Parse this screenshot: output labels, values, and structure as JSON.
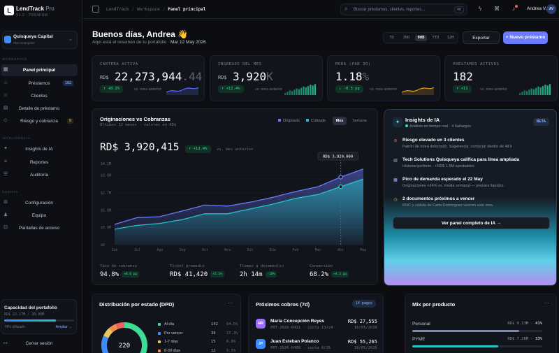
{
  "brand": {
    "name": "LendTrack",
    "pro": "Pro",
    "version": "V1.2 · PREMIUM",
    "logo": "L"
  },
  "org": {
    "name": "Quisqueya Capital",
    "plan": "Plan Enterprise"
  },
  "sidebar": {
    "section1": "WORKSPACE",
    "section2": "INTELIGENCIA",
    "section3": "CUENTA",
    "items": [
      {
        "label": "Panel principal",
        "icon": "grid-icon"
      },
      {
        "label": "Préstamos",
        "icon": "tag-icon",
        "badge": "182"
      },
      {
        "label": "Clientes",
        "icon": "users-icon"
      },
      {
        "label": "Detalle de préstamo",
        "icon": "doc-icon"
      },
      {
        "label": "Riesgo y cobranza",
        "icon": "shield-icon",
        "badge": "9"
      },
      {
        "label": "Insights de IA",
        "icon": "sparkle-icon"
      },
      {
        "label": "Reportes",
        "icon": "chart-icon"
      },
      {
        "label": "Auditoría",
        "icon": "list-icon"
      },
      {
        "label": "Configuración",
        "icon": "gear-icon"
      },
      {
        "label": "Equipo",
        "icon": "team-icon"
      },
      {
        "label": "Pantallas de acceso",
        "icon": "lock-icon"
      }
    ],
    "capacity": {
      "title": "Capacidad del portafolio",
      "value": "RD$ 22.27M / 30.00M",
      "used": "74% utilizado",
      "used_fraction": 0.74,
      "action": "Ampliar →"
    },
    "logout": "Cerrar sesión"
  },
  "topbar": {
    "crumbs": [
      "LendTrack",
      "Workspace",
      "Panel principal"
    ],
    "search_placeholder": "Buscar préstamos, clientes, reportes...",
    "search_key": "⌘K",
    "user": "Andrea V.",
    "user_initials": "AV"
  },
  "header": {
    "greeting": "Buenos días, Andrea 👋",
    "subtitle": "Aquí está el resumen de tu portafolio ·",
    "date": "Mar 12 May 2026",
    "ranges": [
      "7D",
      "30D",
      "90D",
      "YTD",
      "12M"
    ],
    "range_selected": "90D",
    "export": "Exportar",
    "new_loan": "+ Nuevo préstamo"
  },
  "kpis": [
    {
      "label": "CARTERA ACTIVA",
      "cur": "RD$",
      "value": "22,273,944",
      "dec": ".44",
      "delta": "↑ +8.2%",
      "vs": "vs. mes anterior",
      "tone": "g",
      "spark": "line",
      "color": "#5b6cff"
    },
    {
      "label": "INGRESOS DEL MES",
      "cur": "RD$",
      "value": "3,920",
      "dec": "K",
      "delta": "↑ +12.4%",
      "vs": "vs. mes anterior",
      "tone": "g",
      "spark": "bars",
      "color": "#1fbf8f"
    },
    {
      "label": "MORA (PAR 30)",
      "cur": "",
      "value": "1.18",
      "dec": "%",
      "delta": "↓ -0.3 pp",
      "vs": "vs. mes anterior",
      "tone": "g",
      "spark": "line",
      "color": "#e0a020"
    },
    {
      "label": "PRÉSTAMOS ACTIVOS",
      "cur": "",
      "value": "182",
      "dec": "",
      "delta": "↑ +11",
      "vs": "vs. mes anterior",
      "tone": "g",
      "spark": "bars",
      "color": "#1fbf8f"
    }
  ],
  "chart_card": {
    "title": "Originaciones vs Cobranzas",
    "subtitle": "Últimos 12 meses · valores en RD$",
    "legend": [
      "Originado",
      "Cobrado"
    ],
    "toggle": [
      "Mes",
      "Semana"
    ],
    "toggle_selected": "Mes",
    "total": "RD$ 3,920,415",
    "delta": "↑ +12.4%",
    "vs": "vs. mes anterior",
    "tooltip": "RD$ 3,920,000",
    "metrics": [
      {
        "label": "Tasa de cobranza",
        "value": "94.8%",
        "delta": "+0.6 pp"
      },
      {
        "label": "Ticket promedio",
        "value": "RD$ 41,420",
        "delta": "+2.1%"
      },
      {
        "label": "Tiempo a desembolso",
        "value": "2h 14m",
        "delta": "-18%"
      },
      {
        "label": "Conversión",
        "value": "68.2%",
        "delta": "+4.3 pp"
      }
    ]
  },
  "chart_data": {
    "type": "area",
    "categories": [
      "Jun",
      "Jul",
      "Ago",
      "Sep",
      "Oct",
      "Nov",
      "Dic",
      "Ene",
      "Feb",
      "Mar",
      "Abr",
      "May"
    ],
    "yticks": [
      "$0",
      "$0.9M",
      "$1.8M",
      "$2.7M",
      "$3.6M",
      "$4.2M"
    ],
    "ylim": [
      0,
      4.2
    ],
    "series": [
      {
        "name": "Originado",
        "color": "#6b7bff",
        "values": [
          1.05,
          1.4,
          1.45,
          1.75,
          2.05,
          2.0,
          2.2,
          2.45,
          2.75,
          3.0,
          3.5,
          3.92
        ]
      },
      {
        "name": "Cobrado",
        "color": "#25c4c9",
        "values": [
          0.8,
          1.0,
          1.1,
          1.3,
          1.6,
          1.6,
          1.85,
          2.1,
          2.4,
          2.6,
          3.0,
          3.4
        ]
      }
    ]
  },
  "insights": {
    "title": "Insights de IA",
    "subtitle": "Análisis en tiempo real · 4 hallazgos",
    "badge": "BETA",
    "items": [
      {
        "icon": "alert-icon",
        "color": "#f26b6b",
        "title": "Riesgo elevado en 3 clientes",
        "text": "Patrón de mora detectado. Sugerencia: contactar dentro de 48 h"
      },
      {
        "icon": "bank-icon",
        "color": "#8fb3ff",
        "title": "Tech Solutions Quisqueya califica para línea ampliada",
        "text": "Historial perfecto · +RD$ 1.5M aprobables"
      },
      {
        "icon": "calendar-icon",
        "color": "#9ab7ff",
        "title": "Pico de demanda esperado el 22 May",
        "text": "Originaciones +24% vs. media semanal — prepara liquidez."
      },
      {
        "icon": "clock-icon",
        "color": "#e0a020",
        "title": "2 documentos próximos a vencer",
        "text": "RNC y cédula de Carla Domínguez vencen este mes."
      }
    ],
    "cta": "Ver panel completo de IA  →"
  },
  "dpd": {
    "title": "Distribución por estado (DPD)",
    "total": "220",
    "rows": [
      {
        "label": "Al día",
        "count": "142",
        "pct": "64.5%",
        "value": 142,
        "color": "#3ddc97"
      },
      {
        "label": "Por vencer",
        "count": "38",
        "pct": "17.3%",
        "value": 38,
        "color": "#3d8bfd"
      },
      {
        "label": "1-7 días",
        "count": "15",
        "pct": "6.8%",
        "value": 15,
        "color": "#e8c65a"
      },
      {
        "label": "8-30 días",
        "count": "12",
        "pct": "5.5%",
        "value": 12,
        "color": "#f28b4b"
      }
    ],
    "rest_color": "#f25f5c"
  },
  "cobros": {
    "title": "Próximos cobros (7d)",
    "badge": "14 pagos",
    "rows": [
      {
        "initials": "MR",
        "name": "María Concepción Reyes",
        "ref": "PRT-2026-0411 · cuota 13/24",
        "amount": "RD$ 27,555",
        "date": "16/05/2026",
        "color": "#a06bff"
      },
      {
        "initials": "JP",
        "name": "Juan Esteban Polanco",
        "ref": "PRT-2026-0408 · cuota 8/36",
        "amount": "RD$ 55,265",
        "date": "18/05/2026",
        "color": "#3d8bfd"
      }
    ]
  },
  "mix": {
    "title": "Mix por producto",
    "rows": [
      {
        "label": "Personal",
        "value": "RD$ 9.13M",
        "pct": "41%",
        "fraction": 0.41,
        "color": "#7f8aa3"
      },
      {
        "label": "PYME",
        "value": "RD$ 7.26M",
        "pct": "33%",
        "fraction": 0.33,
        "color": "#25c4c9"
      }
    ]
  }
}
